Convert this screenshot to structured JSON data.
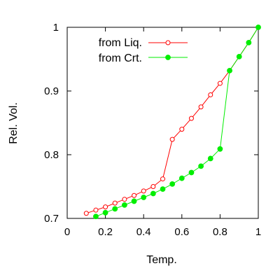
{
  "chart_data": {
    "type": "line",
    "xlabel": "Temp.",
    "ylabel": "Rel. Vol.",
    "xlim": [
      0,
      1
    ],
    "ylim": [
      0.7,
      1.0
    ],
    "xticks": [
      "0",
      "0.2",
      "0.4",
      "0.6",
      "0.8",
      "1"
    ],
    "yticks": [
      "0.7",
      "0.8",
      "0.9",
      "1"
    ],
    "legend_position": "top-left",
    "grid": false,
    "series": [
      {
        "name": "from Liq.",
        "color": "#ff0000",
        "marker": "open-circle",
        "x": [
          0.1,
          0.15,
          0.2,
          0.25,
          0.3,
          0.35,
          0.4,
          0.45,
          0.5,
          0.55,
          0.6,
          0.65,
          0.7,
          0.75,
          0.8,
          0.85,
          0.9,
          0.95,
          1.0
        ],
        "y": [
          0.708,
          0.713,
          0.718,
          0.724,
          0.73,
          0.736,
          0.743,
          0.75,
          0.762,
          0.824,
          0.84,
          0.857,
          0.875,
          0.894,
          0.912,
          0.932,
          0.954,
          0.976,
          1.0
        ]
      },
      {
        "name": "from Crt.",
        "color": "#00ee00",
        "marker": "filled-circle",
        "x": [
          0.15,
          0.2,
          0.25,
          0.3,
          0.35,
          0.4,
          0.45,
          0.5,
          0.55,
          0.6,
          0.65,
          0.7,
          0.75,
          0.8,
          0.85,
          0.9,
          0.95,
          1.0
        ],
        "y": [
          0.703,
          0.709,
          0.715,
          0.721,
          0.727,
          0.733,
          0.739,
          0.746,
          0.754,
          0.763,
          0.772,
          0.782,
          0.794,
          0.809,
          0.932,
          0.954,
          0.976,
          1.0
        ]
      }
    ]
  }
}
